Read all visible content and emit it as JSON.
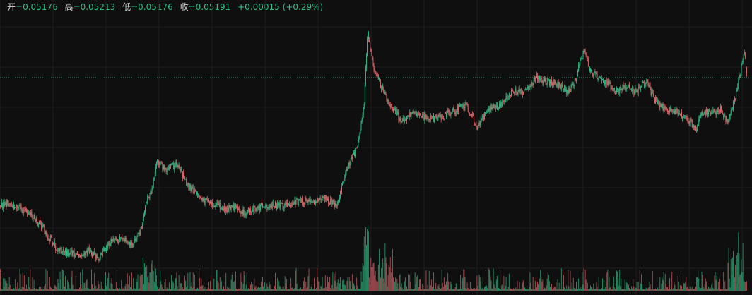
{
  "header": {
    "open_label": "开",
    "open_value": "=0.05176",
    "high_label": "高",
    "high_value": "=0.05213",
    "low_label": "低",
    "low_value": "=0.05176",
    "close_label": "收",
    "close_value": "=0.05191",
    "change": "+0.00015",
    "change_pct": "(+0.29%)"
  },
  "colors": {
    "background": "#0f0f0f",
    "grid": "#1c1c1c",
    "up": "#2ebd85",
    "down": "#e0656b",
    "last_price_line": "#2ebd85",
    "label_text": "#d9d9d9"
  },
  "chart_data": {
    "type": "candlestick",
    "candles": 1000,
    "last_close": 0.05191,
    "grid": true,
    "last_price_line": true,
    "has_volume_pane": true
  }
}
